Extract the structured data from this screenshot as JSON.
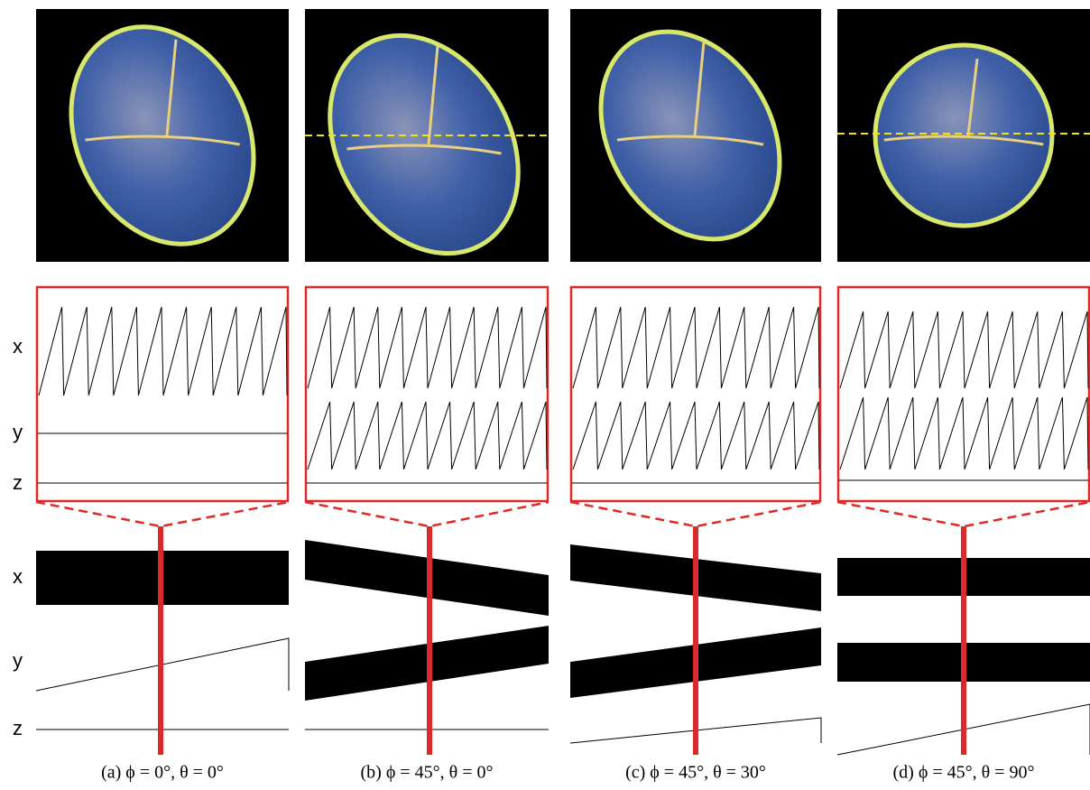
{
  "panels": [
    {
      "caption": "(a) ϕ = 0°, θ = 0°"
    },
    {
      "caption": "(b) ϕ = 45°, θ = 0°"
    },
    {
      "caption": "(c) ϕ = 45°, θ = 30°"
    },
    {
      "caption": "(d) ϕ = 45°, θ = 90°"
    }
  ],
  "row_labels": {
    "top": [
      "x",
      "y",
      "z"
    ],
    "bottom": [
      "x",
      "y",
      "z"
    ]
  }
}
